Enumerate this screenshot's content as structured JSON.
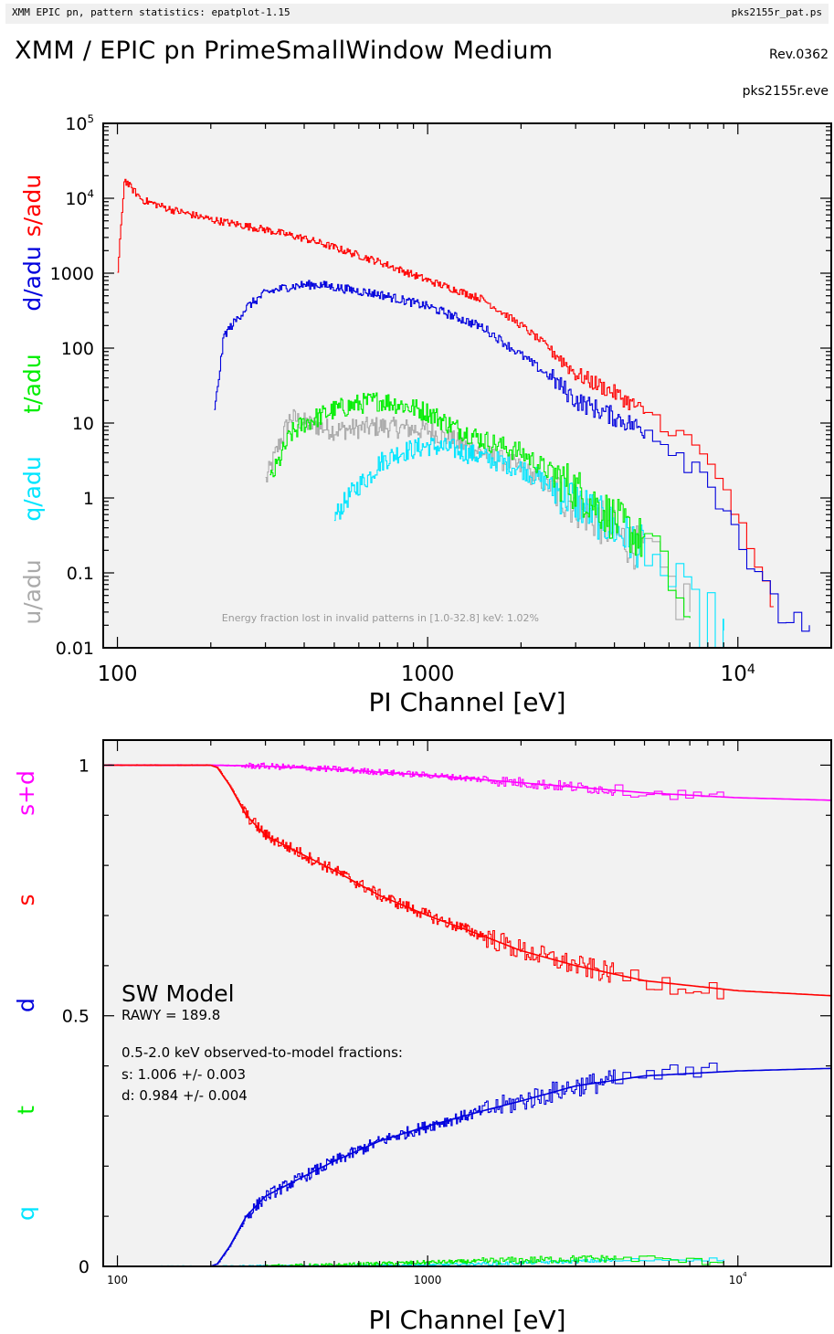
{
  "header": {
    "left": "XMM EPIC pn, pattern statistics: epatplot-1.15",
    "right": "pks2155r_pat.ps"
  },
  "title": "XMM / EPIC pn PrimeSmallWindow Medium",
  "revision": "Rev.0362",
  "event_file": "pks2155r.eve",
  "colors": {
    "s": "#ff0000",
    "d": "#0000dd",
    "t": "#00ee00",
    "q": "#00e5ff",
    "u": "#aaaaaa",
    "sd": "#ff00ff",
    "panel_bg": "#f2f2f2"
  },
  "chart_data": [
    {
      "type": "line",
      "scale": "log-log",
      "xlabel": "PI Channel [eV]",
      "xlim": [
        90,
        20000
      ],
      "ylim": [
        0.01,
        100000
      ],
      "x_tick_labels": [
        "100",
        "1000",
        "10^4"
      ],
      "y_tick_labels": [
        "0.01",
        "0.1",
        "1",
        "10",
        "100",
        "1000",
        "10^4",
        "10^5"
      ],
      "ylabels": [
        "s/adu",
        "d/adu",
        "t/adu",
        "q/adu",
        "u/adu"
      ],
      "annotation": "Energy fraction lost in invalid patterns in [1.0-32.8] keV:  1.02%",
      "series": [
        {
          "name": "s/adu",
          "x": [
            100,
            105,
            110,
            120,
            150,
            200,
            300,
            400,
            500,
            700,
            1000,
            1500,
            2000,
            2500,
            3000,
            4000,
            5000,
            7000,
            9000,
            11000,
            13000
          ],
          "y": [
            1000,
            18000,
            14000,
            9500,
            7000,
            5200,
            3800,
            2900,
            2200,
            1400,
            800,
            450,
            200,
            95,
            45,
            25,
            14,
            5,
            1.3,
            0.12,
            0.035
          ]
        },
        {
          "name": "d/adu",
          "x": [
            205,
            220,
            260,
            300,
            350,
            400,
            450,
            500,
            700,
            1000,
            1500,
            2000,
            2500,
            3000,
            4000,
            5000,
            7000,
            9000,
            11000,
            13000,
            17000
          ],
          "y": [
            14,
            150,
            350,
            550,
            650,
            700,
            700,
            650,
            520,
            360,
            190,
            80,
            40,
            20,
            12,
            8,
            3,
            0.8,
            0.1,
            0.03,
            0.02
          ]
        },
        {
          "name": "t/adu",
          "x": [
            310,
            330,
            360,
            400,
            500,
            600,
            700,
            800,
            1000,
            1200,
            1500,
            2000,
            3000,
            5000,
            7000
          ],
          "y": [
            1.7,
            3,
            7,
            10,
            15,
            18,
            20,
            18,
            14,
            9,
            6,
            4,
            1.3,
            0.25,
            0.025
          ]
        },
        {
          "name": "q/adu",
          "x": [
            500,
            550,
            600,
            650,
            700,
            800,
            1000,
            1200,
            1500,
            2000,
            3000,
            5000,
            7000,
            9000
          ],
          "y": [
            0.55,
            1,
            1.5,
            2,
            3,
            4,
            5,
            4.5,
            3.5,
            2.5,
            0.9,
            0.2,
            0.025,
            0.017
          ]
        },
        {
          "name": "u/adu",
          "x": [
            300,
            330,
            360,
            400,
            500,
            700,
            1000,
            1500,
            2000,
            3000,
            5000,
            7000
          ],
          "y": [
            1.7,
            5,
            12,
            10,
            8,
            9,
            8,
            4,
            2.5,
            0.8,
            0.18,
            0.03
          ]
        }
      ]
    },
    {
      "type": "line",
      "scale": "log-linear",
      "xlabel": "PI Channel [eV]",
      "xlim": [
        90,
        20000
      ],
      "ylim": [
        0,
        1.05
      ],
      "x_tick_labels": [
        "100",
        "1000",
        "10^4"
      ],
      "y_tick_labels": [
        "0",
        "0.5",
        "1"
      ],
      "ylabels": [
        "s+d",
        "s",
        "d",
        "t",
        "q"
      ],
      "model_label": "SW Model",
      "rawy": "RAWY = 189.8",
      "fractions_title": "0.5-2.0 keV observed-to-model fractions:",
      "fraction_s": "s: 1.006 +/- 0.003",
      "fraction_d": "d: 0.984 +/- 0.004",
      "series": [
        {
          "name": "s+d",
          "x": [
            90,
            200,
            300,
            500,
            1000,
            2000,
            5000,
            10000,
            20000
          ],
          "y": [
            1.0,
            1.0,
            0.998,
            0.992,
            0.98,
            0.965,
            0.945,
            0.935,
            0.93
          ]
        },
        {
          "name": "s",
          "x": [
            90,
            200,
            210,
            230,
            260,
            300,
            400,
            500,
            700,
            1000,
            1500,
            2000,
            3000,
            5000,
            10000,
            20000
          ],
          "y": [
            1.0,
            1.0,
            0.995,
            0.96,
            0.9,
            0.86,
            0.82,
            0.79,
            0.74,
            0.7,
            0.66,
            0.63,
            0.6,
            0.57,
            0.55,
            0.54
          ]
        },
        {
          "name": "d",
          "x": [
            90,
            200,
            210,
            230,
            260,
            300,
            400,
            500,
            700,
            1000,
            1500,
            2000,
            3000,
            5000,
            10000,
            20000
          ],
          "y": [
            0.0,
            0.0,
            0.005,
            0.04,
            0.1,
            0.14,
            0.18,
            0.21,
            0.25,
            0.28,
            0.31,
            0.33,
            0.36,
            0.38,
            0.39,
            0.395
          ]
        },
        {
          "name": "t",
          "x": [
            300,
            500,
            1000,
            2000,
            3000,
            5000,
            7000,
            9000
          ],
          "y": [
            0.0,
            0.002,
            0.008,
            0.012,
            0.015,
            0.016,
            0.01,
            0.01
          ]
        },
        {
          "name": "q",
          "x": [
            90,
            500,
            1000,
            2000,
            3000,
            5000,
            7000,
            9000
          ],
          "y": [
            0.0,
            0.001,
            0.003,
            0.007,
            0.01,
            0.013,
            0.014,
            0.014
          ]
        }
      ]
    }
  ]
}
